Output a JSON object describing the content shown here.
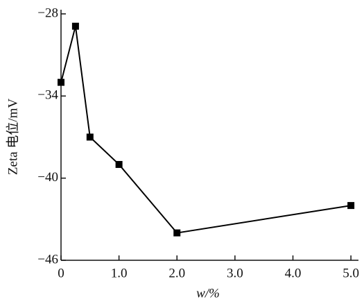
{
  "chart_data": {
    "type": "line",
    "x_label": "w/%",
    "y_label": "Zeta 电位/mV",
    "x": [
      0,
      0.25,
      0.5,
      1.0,
      2.0,
      5.0
    ],
    "series": [
      {
        "color": "#000000",
        "values": [
          -33,
          -28.9,
          -37,
          -39,
          -44,
          -42
        ]
      }
    ],
    "xlim": [
      0,
      5.13
    ],
    "ylim": [
      -46,
      -28
    ],
    "xticks": [
      0,
      {
        "value": 1,
        "label": "1.0"
      },
      {
        "value": 2,
        "label": "2.0"
      },
      {
        "value": 3,
        "label": "3.0"
      },
      {
        "value": 4,
        "label": "4.0"
      },
      {
        "value": 5,
        "label": "5.0"
      }
    ],
    "yticks": [
      {
        "value": -28,
        "label": "−28"
      },
      {
        "value": -34,
        "label": "−34"
      },
      {
        "value": -40,
        "label": "−40"
      },
      {
        "value": -46,
        "label": "−46"
      }
    ],
    "grid": false
  }
}
